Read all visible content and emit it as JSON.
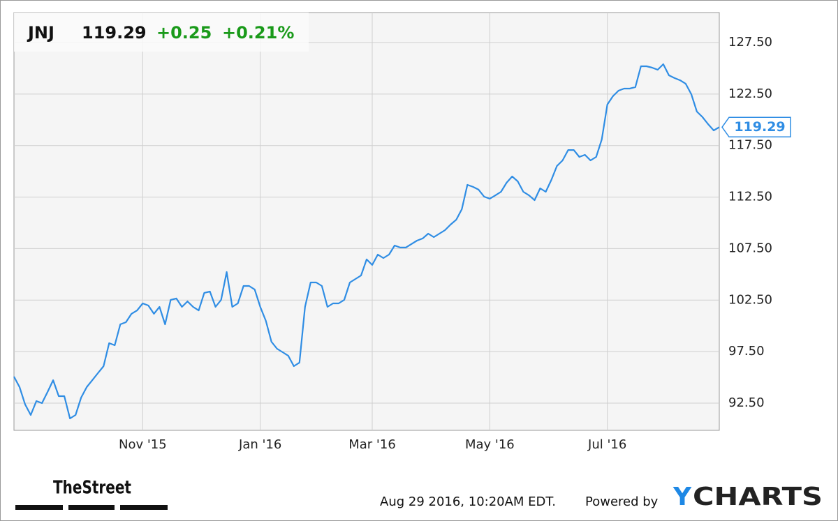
{
  "chart_data": {
    "type": "line",
    "ticker": "JNJ",
    "price": "119.29",
    "change": "+0.25",
    "change_pct": "+0.21%",
    "categories": [
      null,
      null,
      null,
      null,
      null,
      null,
      null,
      null,
      null,
      null,
      null,
      null,
      null,
      null,
      null,
      null,
      null,
      null,
      null,
      null,
      null,
      null,
      null,
      "Nov '15",
      null,
      null,
      null,
      null,
      null,
      null,
      null,
      null,
      null,
      null,
      null,
      null,
      null,
      null,
      null,
      null,
      null,
      null,
      null,
      null,
      "Jan '16",
      null,
      null,
      null,
      null,
      null,
      null,
      null,
      null,
      null,
      null,
      null,
      null,
      null,
      null,
      null,
      null,
      null,
      null,
      null,
      "Mar '16",
      null,
      null,
      null,
      null,
      null,
      null,
      null,
      null,
      null,
      null,
      null,
      null,
      null,
      null,
      null,
      null,
      null,
      null,
      null,
      null,
      "May '16",
      null,
      null,
      null,
      null,
      null,
      null,
      null,
      null,
      null,
      null,
      null,
      null,
      null,
      null,
      null,
      null,
      null,
      null,
      null,
      null,
      "Jul '16",
      null,
      null,
      null,
      null,
      null,
      null,
      null,
      null,
      null,
      null,
      null,
      null,
      null,
      null,
      null,
      null,
      null,
      null,
      null,
      null
    ],
    "series": [
      {
        "name": "JNJ",
        "color": "#2f8de4",
        "values": [
          95.07,
          94.06,
          92.37,
          91.35,
          92.7,
          92.5,
          93.58,
          94.73,
          93.18,
          93.18,
          91.01,
          91.35,
          93.04,
          94.06,
          94.73,
          95.41,
          96.09,
          98.32,
          98.12,
          100.15,
          100.35,
          101.17,
          101.5,
          102.18,
          101.98,
          101.17,
          101.84,
          100.15,
          102.52,
          102.66,
          101.84,
          102.38,
          101.84,
          101.5,
          103.2,
          103.33,
          101.84,
          102.52,
          105.23,
          101.84,
          102.18,
          103.87,
          103.87,
          103.53,
          101.84,
          100.49,
          98.46,
          97.78,
          97.44,
          97.1,
          96.09,
          96.43,
          101.84,
          104.21,
          104.21,
          103.87,
          101.84,
          102.18,
          102.18,
          102.52,
          104.21,
          104.55,
          104.89,
          106.45,
          105.91,
          106.92,
          106.58,
          106.92,
          107.8,
          107.6,
          107.6,
          107.94,
          108.27,
          108.48,
          108.95,
          108.61,
          108.95,
          109.29,
          109.83,
          110.3,
          111.32,
          113.69,
          113.49,
          113.22,
          112.54,
          112.34,
          112.67,
          113.01,
          113.89,
          114.5,
          114.03,
          113.01,
          112.67,
          112.2,
          113.35,
          113.01,
          114.16,
          115.52,
          116.06,
          117.07,
          117.07,
          116.4,
          116.6,
          116.06,
          116.4,
          118.09,
          121.48,
          122.29,
          122.83,
          123.03,
          123.03,
          123.17,
          125.2,
          125.2,
          125.06,
          124.86,
          125.4,
          124.32,
          124.05,
          123.84,
          123.5,
          122.49,
          120.8,
          120.26,
          119.58,
          118.97,
          119.29
        ]
      }
    ],
    "ylim": [
      89.86,
      130.41
    ],
    "yticks": [
      {
        "value": 92.5,
        "label": "92.50"
      },
      {
        "value": 97.5,
        "label": "97.50"
      },
      {
        "value": 102.5,
        "label": "102.50"
      },
      {
        "value": 107.5,
        "label": "107.50"
      },
      {
        "value": 112.5,
        "label": "112.50"
      },
      {
        "value": 117.5,
        "label": "117.50"
      },
      {
        "value": 122.5,
        "label": "122.50"
      },
      {
        "value": 127.5,
        "label": "127.50"
      }
    ],
    "grid": true
  },
  "footer": {
    "source": "TheStreet",
    "timestamp": "Aug 29 2016, 10:20AM EDT.",
    "powered": "Powered by",
    "logo_y": "Y",
    "logo_rest": "CHARTS"
  }
}
